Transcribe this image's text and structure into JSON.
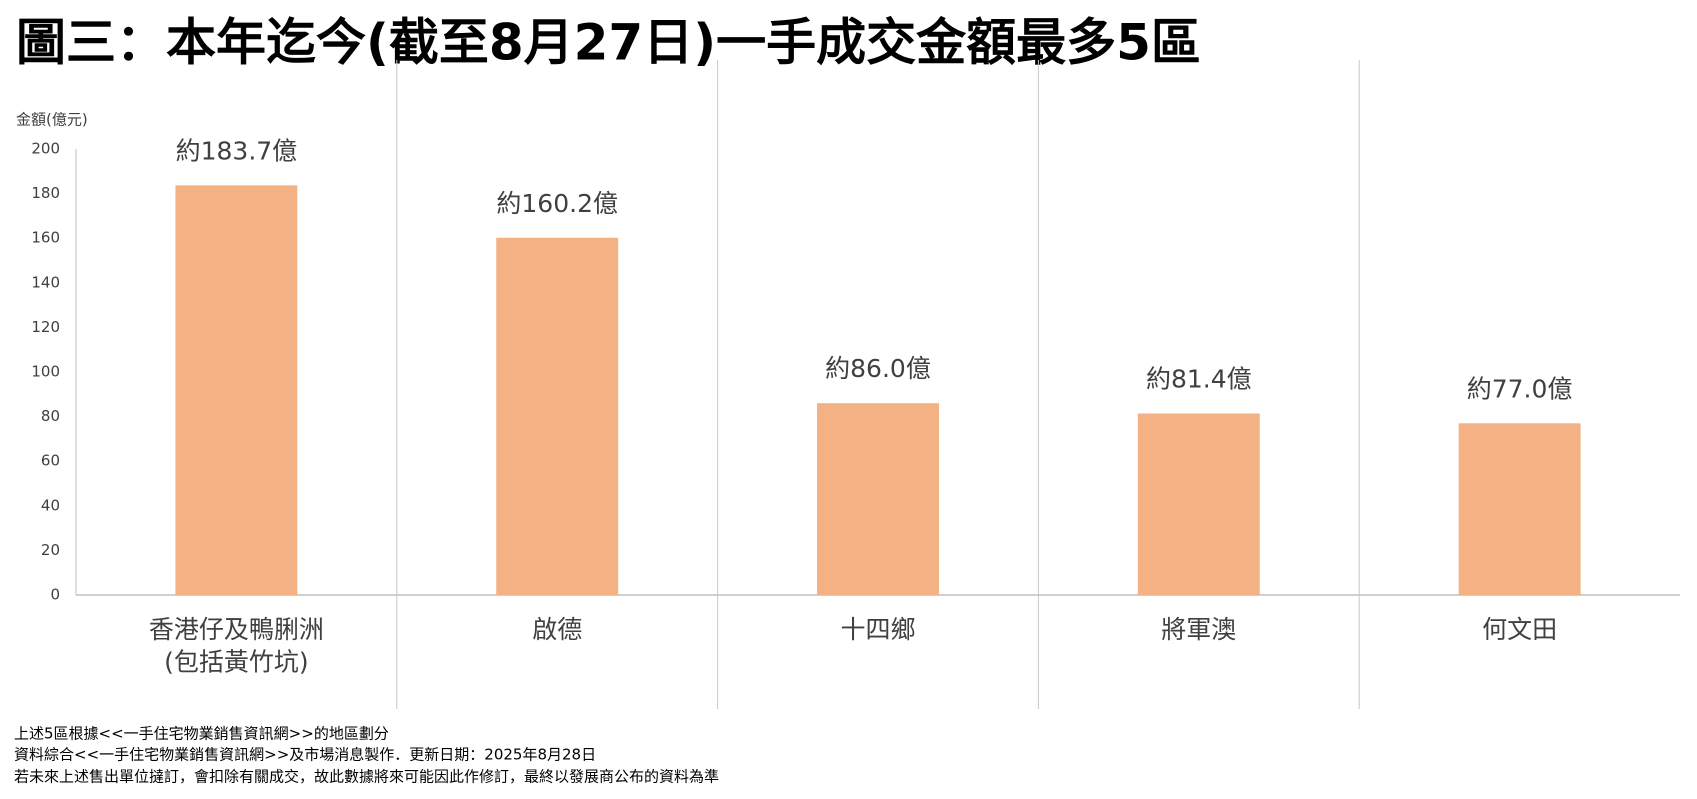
{
  "chart_data": {
    "type": "bar",
    "title": "圖三：本年迄今(截至8月27日)一手成交金額最多5區",
    "y_label": "金額(億元)",
    "categories": [
      "香港仔及鴨脷洲\n(包括黃竹坑)",
      "啟德",
      "十四鄉",
      "將軍澳",
      "何文田"
    ],
    "values": [
      183.7,
      160.2,
      86.0,
      81.4,
      77.0
    ],
    "value_labels": [
      "約183.7億",
      "約160.2億",
      "約86.0億",
      "約81.4億",
      "約77.0億"
    ],
    "color": "#f4b183",
    "ylim": [
      0,
      200
    ],
    "yticks": [
      0,
      20,
      40,
      60,
      80,
      100,
      120,
      140,
      160,
      180,
      200
    ],
    "grid": false,
    "notes": [
      "上述5區根據<<一手住宅物業銷售資訊網>>的地區劃分",
      "資料綜合<<一手住宅物業銷售資訊網>>及市場消息製作．更新日期：2025年8月28日",
      "若未來上述售出單位撻訂，會扣除有關成交，故此數據將來可能因此作修訂，最終以發展商公布的資料為準"
    ]
  }
}
